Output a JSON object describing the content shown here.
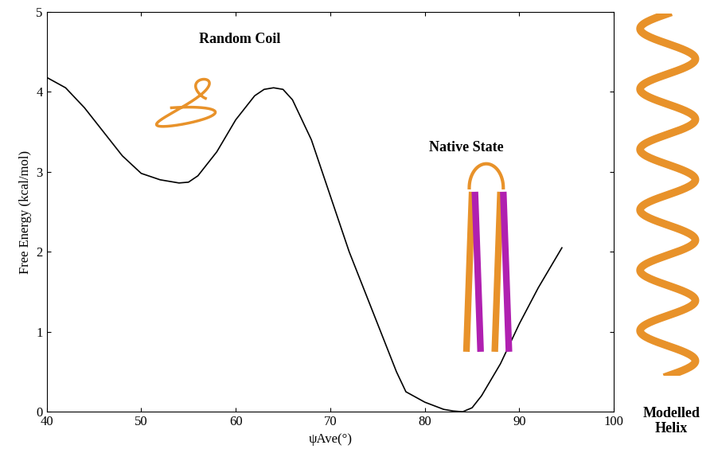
{
  "chart_data": {
    "type": "line",
    "xlabel": "ψAve(°)",
    "ylabel": "Free Energy (kcal/mol)",
    "x": [
      40,
      42,
      44,
      46,
      48,
      50,
      52,
      54,
      55,
      56,
      58,
      60,
      62,
      63,
      64,
      65,
      66,
      68,
      70,
      72,
      74,
      76,
      77,
      78,
      80,
      82,
      83,
      84,
      85,
      86,
      88,
      90,
      92,
      94.5
    ],
    "values": [
      4.18,
      4.05,
      3.8,
      3.5,
      3.2,
      2.98,
      2.9,
      2.86,
      2.87,
      2.95,
      3.25,
      3.65,
      3.95,
      4.03,
      4.05,
      4.03,
      3.9,
      3.4,
      2.7,
      2.0,
      1.4,
      0.8,
      0.5,
      0.25,
      0.12,
      0.03,
      0.01,
      0.0,
      0.05,
      0.2,
      0.6,
      1.1,
      1.55,
      2.05
    ],
    "color": "#000000",
    "xlim": [
      40,
      100
    ],
    "ylim": [
      0,
      5
    ],
    "xticks": [
      40,
      50,
      60,
      70,
      80,
      90,
      100
    ],
    "yticks": [
      0,
      1,
      2,
      3,
      4,
      5
    ],
    "grid": false,
    "annotations": [
      "Random Coil",
      "Native State",
      "Modelled\nHelix"
    ]
  }
}
